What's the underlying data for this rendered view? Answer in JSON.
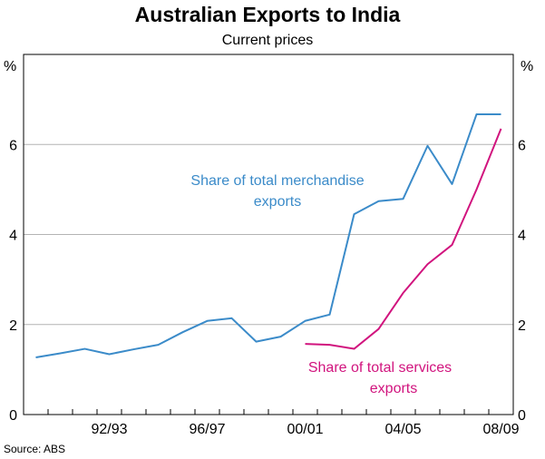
{
  "chart_data": {
    "type": "line",
    "title": "Australian Exports to India",
    "subtitle": "Current prices",
    "ylabel_left": "%",
    "ylabel_right": "%",
    "ylim": [
      0,
      8
    ],
    "yticks": [
      0,
      2,
      4,
      6
    ],
    "xlim": [
      1989.5,
      2009.5
    ],
    "xticks": [
      {
        "label": "92/93",
        "x": 1993
      },
      {
        "label": "96/97",
        "x": 1997
      },
      {
        "label": "00/01",
        "x": 2001
      },
      {
        "label": "04/05",
        "x": 2005
      },
      {
        "label": "08/09",
        "x": 2009
      }
    ],
    "grid": true,
    "series": [
      {
        "name": "Share of total merchandise exports",
        "label_lines": [
          "Share of total merchandise",
          "exports"
        ],
        "color": "#3b8bc9",
        "x": [
          1990,
          1991,
          1992,
          1993,
          1994,
          1995,
          1996,
          1997,
          1998,
          1999,
          2000,
          2001,
          2002,
          2003,
          2004,
          2005,
          2006,
          2007,
          2008,
          2009
        ],
        "values": [
          1.27,
          1.36,
          1.46,
          1.34,
          1.45,
          1.55,
          1.83,
          2.08,
          2.14,
          1.62,
          1.73,
          2.08,
          2.22,
          4.45,
          4.74,
          4.79,
          5.97,
          5.12,
          6.67,
          6.67
        ]
      },
      {
        "name": "Share of total services exports",
        "label_lines": [
          "Share of total services",
          "exports"
        ],
        "color": "#d1147e",
        "x": [
          2001,
          2002,
          2003,
          2004,
          2005,
          2006,
          2007,
          2008,
          2009
        ],
        "values": [
          1.57,
          1.55,
          1.46,
          1.9,
          2.7,
          3.34,
          3.77,
          5.0,
          6.35
        ]
      }
    ]
  },
  "footer": {
    "source": "Source: ABS"
  }
}
